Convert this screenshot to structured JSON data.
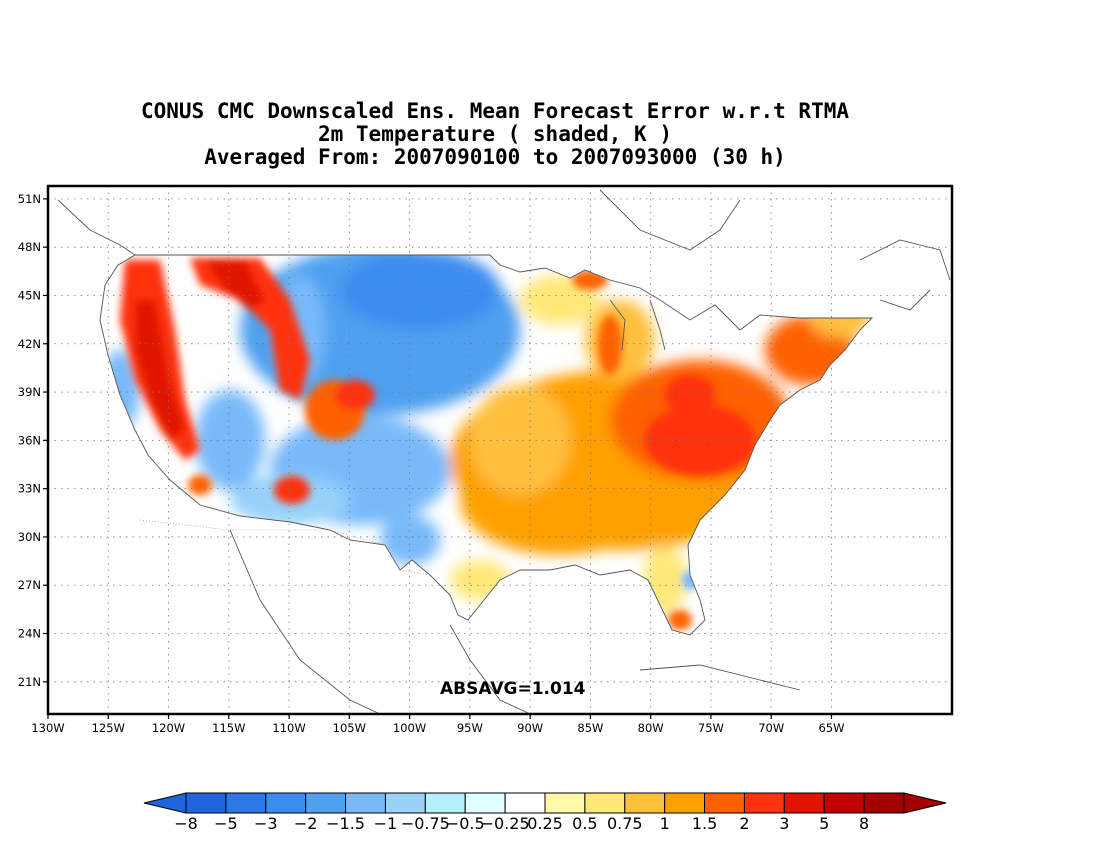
{
  "title": {
    "line1": "CONUS CMC Downscaled Ens. Mean Forecast Error w.r.t RTMA",
    "line2": "2m Temperature ( shaded, K )",
    "line3": "Averaged From: 2007090100 to 2007093000 (30 h)"
  },
  "map": {
    "lon_range": [
      -130,
      -55
    ],
    "lat_range": [
      19,
      51.8
    ],
    "lat_ticks": [
      "51N",
      "48N",
      "45N",
      "42N",
      "39N",
      "36N",
      "33N",
      "30N",
      "27N",
      "24N",
      "21N"
    ],
    "lon_ticks": [
      "130W",
      "125W",
      "120W",
      "115W",
      "110W",
      "105W",
      "100W",
      "95W",
      "90W",
      "85W",
      "80W",
      "75W",
      "70W",
      "65W"
    ],
    "grid": "dotted",
    "statistic": "ABSAVG=1.014"
  },
  "colorbar": {
    "labels": [
      "-8",
      "-5",
      "-3",
      "-2",
      "-1.5",
      "-1",
      "-0.75",
      "-0.5",
      "-0.25",
      "0.25",
      "0.5",
      "0.75",
      "1",
      "1.5",
      "2",
      "3",
      "5",
      "8"
    ],
    "colors": [
      "#1e64dc",
      "#2b78e6",
      "#3c8cf0",
      "#50a0f0",
      "#78b9fa",
      "#96d2fa",
      "#b4f0fa",
      "#e1ffff",
      "#ffffff",
      "#fffaaa",
      "#ffe878",
      "#ffc03c",
      "#ffa000",
      "#ff6000",
      "#ff3210",
      "#e11400",
      "#c00000",
      "#a50000"
    ],
    "under_color": "#1e64dc",
    "over_color": "#a50000"
  }
}
